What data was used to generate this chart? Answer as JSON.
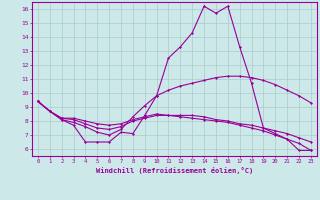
{
  "xlabel": "Windchill (Refroidissement éolien,°C)",
  "bg_color": "#cce8e8",
  "grid_color": "#aacccc",
  "line_color": "#990099",
  "xlim": [
    -0.5,
    23.5
  ],
  "ylim": [
    5.5,
    16.5
  ],
  "xticks": [
    0,
    1,
    2,
    3,
    4,
    5,
    6,
    7,
    8,
    9,
    10,
    11,
    12,
    13,
    14,
    15,
    16,
    17,
    18,
    19,
    20,
    21,
    22,
    23
  ],
  "yticks": [
    6,
    7,
    8,
    9,
    10,
    11,
    12,
    13,
    14,
    15,
    16
  ],
  "lines": [
    [
      9.4,
      8.7,
      8.1,
      7.7,
      6.5,
      6.5,
      6.5,
      7.2,
      7.1,
      8.4,
      9.8,
      12.5,
      13.3,
      14.3,
      16.2,
      15.7,
      16.2,
      13.3,
      10.7,
      7.5,
      7.1,
      6.7,
      5.9,
      5.9
    ],
    [
      9.4,
      8.7,
      8.1,
      7.9,
      7.6,
      7.2,
      7.0,
      7.4,
      8.3,
      9.1,
      9.8,
      10.2,
      10.5,
      10.7,
      10.9,
      11.1,
      11.2,
      11.2,
      11.1,
      10.9,
      10.6,
      10.2,
      9.8,
      9.3
    ],
    [
      9.4,
      8.7,
      8.2,
      8.1,
      7.8,
      7.5,
      7.4,
      7.6,
      8.0,
      8.2,
      8.4,
      8.4,
      8.4,
      8.4,
      8.3,
      8.1,
      8.0,
      7.8,
      7.7,
      7.5,
      7.3,
      7.1,
      6.8,
      6.5
    ],
    [
      9.4,
      8.7,
      8.2,
      8.2,
      8.0,
      7.8,
      7.7,
      7.8,
      8.1,
      8.3,
      8.5,
      8.4,
      8.3,
      8.2,
      8.1,
      8.0,
      7.9,
      7.7,
      7.5,
      7.3,
      7.0,
      6.7,
      6.4,
      5.9
    ]
  ]
}
